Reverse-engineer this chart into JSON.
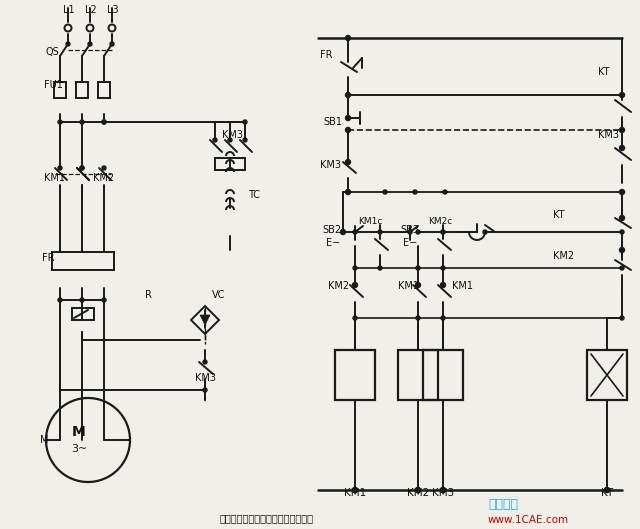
{
  "bg_color": "#f0efe8",
  "line_color": "#1a1a1a",
  "title_text": "电动机可逆运行的能耗制动控制线路",
  "watermark1": "仿真在线",
  "watermark2": "www.1CAE.com",
  "fig_width": 6.4,
  "fig_height": 5.29,
  "lw": 1.4
}
